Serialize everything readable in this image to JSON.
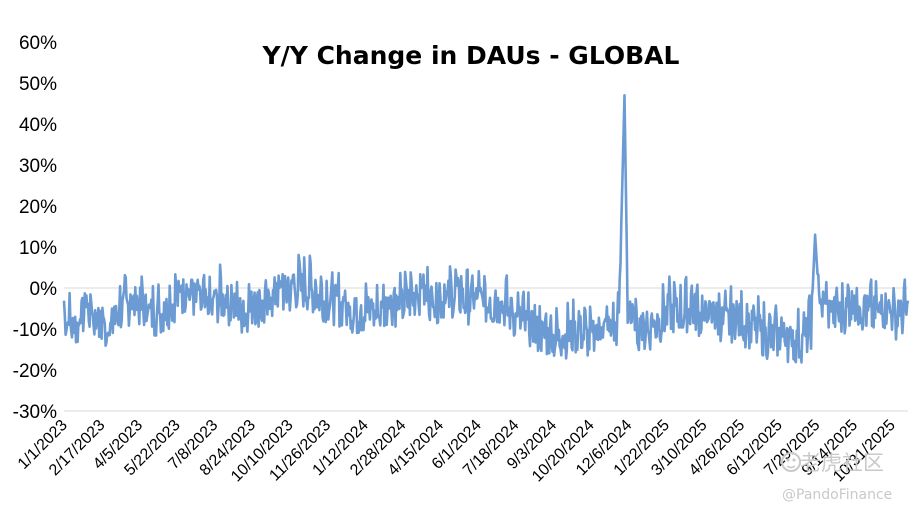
{
  "chart_data": {
    "type": "line",
    "title": "Y/Y Change in DAUs - GLOBAL",
    "xlabel": "",
    "ylabel": "",
    "y_unit": "percent",
    "ylim": [
      -30,
      60
    ],
    "y_ticks": [
      -30,
      -20,
      -10,
      0,
      10,
      20,
      30,
      40,
      50,
      60
    ],
    "y_tick_labels": [
      "-30%",
      "-20%",
      "-10%",
      "0%",
      "10%",
      "20%",
      "30%",
      "40%",
      "50%",
      "60%"
    ],
    "x_start": "2023-01-01",
    "x_end": "2025-11-20",
    "x_tick_labels": [
      "1/1/2023",
      "2/17/2023",
      "4/5/2023",
      "5/22/2023",
      "7/8/2023",
      "8/24/2023",
      "10/10/2023",
      "11/26/2023",
      "1/12/2024",
      "2/28/2024",
      "4/15/2024",
      "6/1/2024",
      "7/18/2024",
      "9/3/2024",
      "10/20/2024",
      "12/6/2024",
      "1/22/2025",
      "3/10/2025",
      "4/26/2025",
      "6/12/2025",
      "7/29/2025",
      "9/14/2025",
      "10/31/2025"
    ],
    "x_tick_dates": [
      "2023-01-01",
      "2023-02-17",
      "2023-04-05",
      "2023-05-22",
      "2023-07-08",
      "2023-08-24",
      "2023-10-10",
      "2023-11-26",
      "2024-01-12",
      "2024-02-28",
      "2024-04-15",
      "2024-06-01",
      "2024-07-18",
      "2024-09-03",
      "2024-10-20",
      "2024-12-06",
      "2025-01-22",
      "2025-03-10",
      "2025-04-26",
      "2025-06-12",
      "2025-07-29",
      "2025-09-14",
      "2025-10-31"
    ],
    "grid": false,
    "legend": "none",
    "series": [
      {
        "color": "#6b9bd2",
        "points": [
          [
            "2023-01-01",
            -6
          ],
          [
            "2023-01-15",
            -10
          ],
          [
            "2023-01-29",
            -4
          ],
          [
            "2023-02-12",
            -8
          ],
          [
            "2023-02-26",
            -10
          ],
          [
            "2023-03-12",
            -5
          ],
          [
            "2023-03-26",
            -3
          ],
          [
            "2023-04-09",
            -4
          ],
          [
            "2023-04-23",
            -6
          ],
          [
            "2023-05-07",
            -5
          ],
          [
            "2023-05-21",
            -2
          ],
          [
            "2023-06-04",
            0
          ],
          [
            "2023-06-18",
            -3
          ],
          [
            "2023-07-02",
            -5
          ],
          [
            "2023-07-16",
            -2
          ],
          [
            "2023-07-30",
            -4
          ],
          [
            "2023-08-13",
            -6
          ],
          [
            "2023-08-27",
            -3
          ],
          [
            "2023-09-10",
            -5
          ],
          [
            "2023-09-24",
            0
          ],
          [
            "2023-10-08",
            -1
          ],
          [
            "2023-10-22",
            1
          ],
          [
            "2023-11-05",
            0
          ],
          [
            "2023-11-19",
            -2
          ],
          [
            "2023-12-03",
            -3
          ],
          [
            "2023-12-17",
            -4
          ],
          [
            "2023-12-31",
            -6
          ],
          [
            "2024-01-14",
            -5
          ],
          [
            "2024-01-28",
            -6
          ],
          [
            "2024-02-11",
            -3
          ],
          [
            "2024-02-25",
            -4
          ],
          [
            "2024-03-10",
            -2
          ],
          [
            "2024-03-24",
            0
          ],
          [
            "2024-04-07",
            -3
          ],
          [
            "2024-04-21",
            -2
          ],
          [
            "2024-05-05",
            -1
          ],
          [
            "2024-05-19",
            -3
          ],
          [
            "2024-06-02",
            -2
          ],
          [
            "2024-06-16",
            -4
          ],
          [
            "2024-06-30",
            -3
          ],
          [
            "2024-07-14",
            -6
          ],
          [
            "2024-07-28",
            -8
          ],
          [
            "2024-08-11",
            -10
          ],
          [
            "2024-08-25",
            -11
          ],
          [
            "2024-09-08",
            -12
          ],
          [
            "2024-09-22",
            -11
          ],
          [
            "2024-10-06",
            -10
          ],
          [
            "2024-10-20",
            -12
          ],
          [
            "2024-11-03",
            -9
          ],
          [
            "2024-11-17",
            -10
          ],
          [
            "2024-11-24",
            -8
          ],
          [
            "2024-12-01",
            47
          ],
          [
            "2024-12-05",
            -5
          ],
          [
            "2024-12-15",
            -9
          ],
          [
            "2024-12-29",
            -10
          ],
          [
            "2025-01-12",
            -8
          ],
          [
            "2025-01-26",
            -5
          ],
          [
            "2025-02-09",
            -6
          ],
          [
            "2025-02-23",
            -4
          ],
          [
            "2025-03-09",
            -7
          ],
          [
            "2025-03-23",
            -6
          ],
          [
            "2025-04-06",
            -8
          ],
          [
            "2025-04-20",
            -7
          ],
          [
            "2025-05-04",
            -9
          ],
          [
            "2025-05-18",
            -10
          ],
          [
            "2025-06-01",
            -12
          ],
          [
            "2025-06-15",
            -11
          ],
          [
            "2025-06-29",
            -13
          ],
          [
            "2025-07-13",
            -12
          ],
          [
            "2025-07-22",
            -9
          ],
          [
            "2025-07-27",
            13
          ],
          [
            "2025-08-01",
            -3
          ],
          [
            "2025-08-15",
            -5
          ],
          [
            "2025-08-29",
            -6
          ],
          [
            "2025-09-12",
            -3
          ],
          [
            "2025-09-26",
            -5
          ],
          [
            "2025-10-10",
            -6
          ],
          [
            "2025-10-24",
            -4
          ],
          [
            "2025-11-07",
            -7
          ],
          [
            "2025-11-20",
            -5
          ]
        ]
      }
    ]
  },
  "watermark": {
    "logo_text": "老虎社区",
    "handle_text": "@PandoFinance"
  }
}
